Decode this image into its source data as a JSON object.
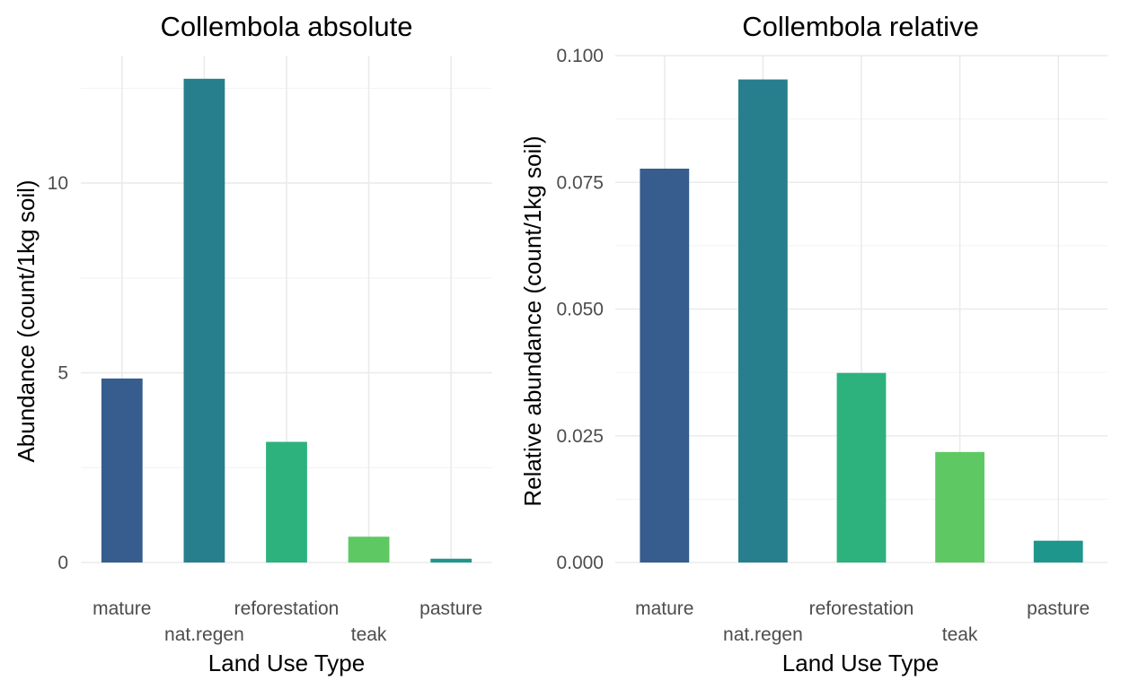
{
  "chart_data": [
    {
      "type": "bar",
      "title": "Collembola absolute",
      "xlabel": "Land Use Type",
      "ylabel": "Abundance (count/1kg soil)",
      "categories": [
        "mature",
        "nat.regen",
        "reforestation",
        "teak",
        "pasture"
      ],
      "values": [
        4.85,
        12.75,
        3.18,
        0.68,
        0.1
      ],
      "colors": [
        "#365d8d",
        "#277f8e",
        "#2db27d",
        "#5ec962",
        "#1f968b"
      ],
      "yticks": [
        0,
        5,
        10
      ],
      "ytick_labels": [
        "0",
        "5",
        "10"
      ],
      "ylim": [
        0,
        13.36
      ],
      "grid": true,
      "legend": "none"
    },
    {
      "type": "bar",
      "title": "Collembola relative",
      "xlabel": "Land Use Type",
      "ylabel": "Relative abundance (count/1kg soil)",
      "categories": [
        "mature",
        "nat.regen",
        "reforestation",
        "teak",
        "pasture"
      ],
      "values": [
        0.0777,
        0.0953,
        0.0374,
        0.0218,
        0.0043
      ],
      "colors": [
        "#365d8d",
        "#277f8e",
        "#2db27d",
        "#5ec962",
        "#1f968b"
      ],
      "yticks": [
        0,
        0.025,
        0.05,
        0.075,
        0.1
      ],
      "ytick_labels": [
        "0.000",
        "0.025",
        "0.050",
        "0.075",
        "0.100"
      ],
      "ylim": [
        0,
        0.1
      ],
      "grid": true,
      "legend": "none"
    }
  ]
}
